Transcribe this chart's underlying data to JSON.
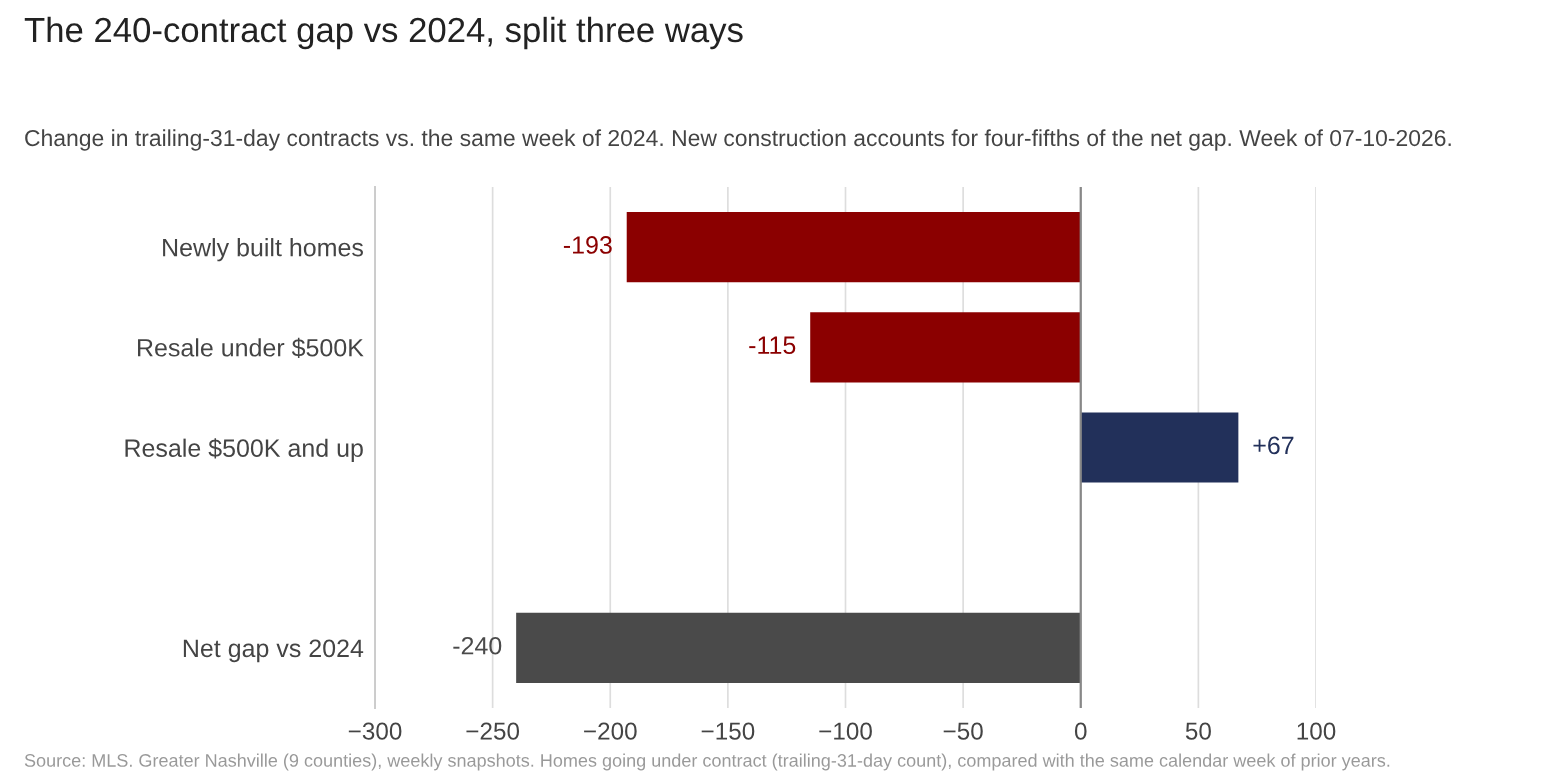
{
  "chart_data": {
    "type": "bar",
    "orientation": "horizontal",
    "title": "The 240-contract gap vs 2024, split three ways",
    "subtitle": "Change in trailing-31-day contracts vs. the same week of 2024. New construction accounts for four-fifths of the net gap. Week of 07-10-2026.",
    "categories": [
      "Newly built homes",
      "Resale under $500K",
      "Resale $500K and up",
      null,
      "Net gap vs 2024"
    ],
    "values": [
      -193,
      -115,
      67,
      null,
      -240
    ],
    "colors": [
      "#8b0000",
      "#8b0000",
      "#22305a",
      null,
      "#4a4a4a"
    ],
    "value_labels": [
      "-193",
      "-115",
      "+67",
      null,
      "-240"
    ],
    "xlim": [
      -300,
      100
    ],
    "xticks": [
      {
        "value": -300,
        "label": "−300"
      },
      {
        "value": -250,
        "label": "−250"
      },
      {
        "value": -200,
        "label": "−200"
      },
      {
        "value": -150,
        "label": "−150"
      },
      {
        "value": -100,
        "label": "−100"
      },
      {
        "value": -50,
        "label": "−50"
      },
      0,
      50,
      100
    ],
    "grid": "x",
    "ref_lines": [
      {
        "axis": "x",
        "value": 0,
        "color": "#888888"
      }
    ],
    "annotations": [
      "Source: MLS. Greater Nashville (9 counties), weekly snapshots. Homes going under contract (trailing-31-day count), compared with the same calendar week of prior years."
    ]
  }
}
